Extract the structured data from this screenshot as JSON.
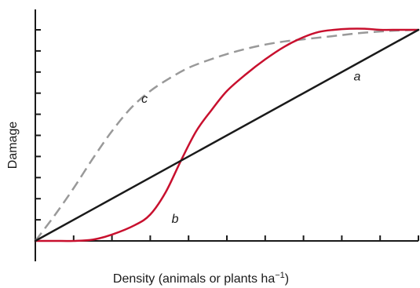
{
  "chart_data": {
    "type": "line",
    "xlabel": "Density (animals or plants ha",
    "xlabel_superscript": "−1",
    "xlabel_suffix": ")",
    "ylabel": "Damage",
    "xlim": [
      0,
      10
    ],
    "ylim": [
      0,
      10
    ],
    "x_ticks": [
      0,
      1,
      2,
      3,
      4,
      5,
      6,
      7,
      8,
      9,
      10
    ],
    "y_ticks": [
      0,
      1,
      2,
      3,
      4,
      5,
      6,
      7,
      8,
      9,
      10
    ],
    "tick_labels_shown": false,
    "grid": false,
    "series": [
      {
        "name": "a",
        "color": "#1a1a1a",
        "style": "solid",
        "x": [
          0,
          10
        ],
        "y": [
          0,
          10
        ],
        "label_at": [
          8.4,
          7.6
        ]
      },
      {
        "name": "b",
        "color": "#c8102e",
        "style": "solid",
        "x": [
          0,
          0.5,
          1.0,
          1.5,
          2.0,
          2.6,
          3.0,
          3.4,
          3.8,
          4.2,
          4.6,
          5.0,
          5.5,
          6.0,
          6.5,
          7.0,
          7.4,
          7.8,
          8.2,
          8.6,
          9.0,
          9.5,
          10.0
        ],
        "y": [
          0,
          0,
          0,
          0.06,
          0.3,
          0.75,
          1.25,
          2.3,
          3.8,
          5.2,
          6.2,
          7.1,
          7.9,
          8.6,
          9.2,
          9.65,
          9.9,
          10.0,
          10.05,
          10.05,
          10.0,
          10.0,
          10.0
        ],
        "label_at": [
          3.65,
          0.85
        ]
      },
      {
        "name": "c",
        "color": "#999999",
        "style": "dashed",
        "x": [
          0,
          0.5,
          1.0,
          1.5,
          2.0,
          2.5,
          3.0,
          3.5,
          4.0,
          4.5,
          5.0,
          5.5,
          6.0,
          6.5,
          7.0,
          7.5,
          8.0,
          8.5,
          9.0,
          9.5,
          10.0
        ],
        "y": [
          0,
          1.2,
          2.5,
          3.9,
          5.2,
          6.3,
          7.1,
          7.7,
          8.2,
          8.55,
          8.85,
          9.1,
          9.3,
          9.45,
          9.55,
          9.65,
          9.75,
          9.85,
          9.92,
          9.97,
          10.0
        ],
        "label_at": [
          2.85,
          6.55
        ]
      }
    ]
  }
}
